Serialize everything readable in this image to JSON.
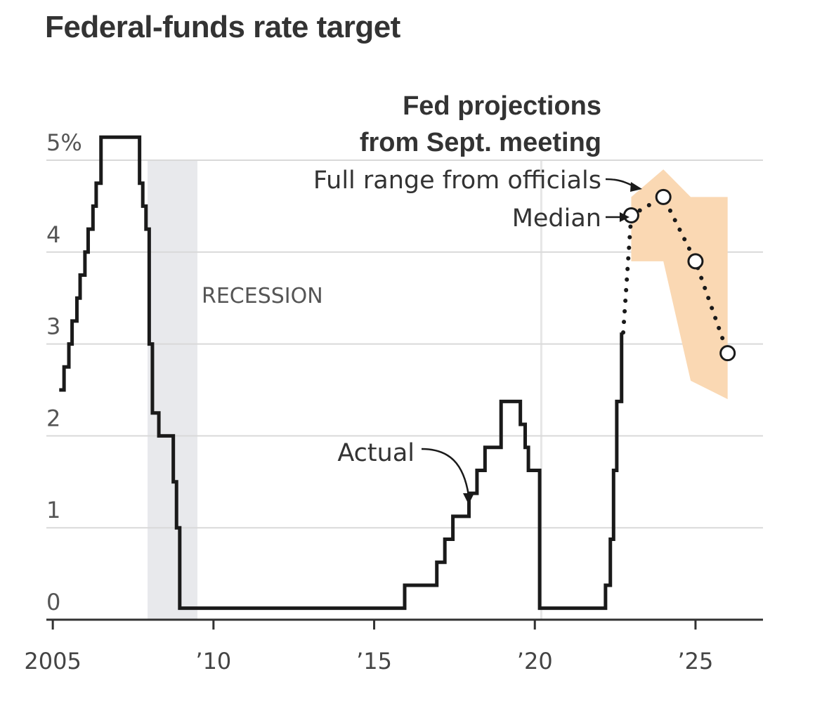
{
  "chart_data": {
    "type": "line",
    "title": "Federal-funds rate target",
    "xlabel": "",
    "ylabel": "",
    "xlim": [
      2004.8,
      2027.1
    ],
    "ylim": [
      0,
      5
    ],
    "x_ticks": [
      {
        "value": 2005,
        "label": "2005"
      },
      {
        "value": 2010,
        "label": "’10"
      },
      {
        "value": 2015,
        "label": "’15"
      },
      {
        "value": 2020,
        "label": "’20"
      },
      {
        "value": 2025,
        "label": "’25"
      }
    ],
    "y_ticks": [
      {
        "value": 0,
        "label": "0"
      },
      {
        "value": 1,
        "label": "1"
      },
      {
        "value": 2,
        "label": "2"
      },
      {
        "value": 3,
        "label": "3"
      },
      {
        "value": 4,
        "label": "4"
      },
      {
        "value": 5,
        "label": "5%"
      }
    ],
    "grid": true,
    "recession": {
      "label": "RECESSION",
      "start": 2007.95,
      "end": 2009.5
    },
    "vline_x": 2020.2,
    "annotations": {
      "actual_label": "Actual",
      "projection_title_line1": "Fed projections",
      "projection_title_line2": "from Sept. meeting",
      "range_label": "Full range from officials",
      "median_label": "Median"
    },
    "series": [
      {
        "name": "Actual",
        "step": true,
        "points": [
          [
            2005.2,
            2.5
          ],
          [
            2005.35,
            2.75
          ],
          [
            2005.5,
            3.0
          ],
          [
            2005.6,
            3.25
          ],
          [
            2005.75,
            3.5
          ],
          [
            2005.85,
            3.75
          ],
          [
            2006.0,
            4.0
          ],
          [
            2006.1,
            4.25
          ],
          [
            2006.25,
            4.5
          ],
          [
            2006.35,
            4.75
          ],
          [
            2006.5,
            5.25
          ],
          [
            2007.7,
            4.75
          ],
          [
            2007.8,
            4.5
          ],
          [
            2007.9,
            4.25
          ],
          [
            2008.0,
            3.0
          ],
          [
            2008.1,
            2.25
          ],
          [
            2008.3,
            2.0
          ],
          [
            2008.75,
            1.5
          ],
          [
            2008.85,
            1.0
          ],
          [
            2008.95,
            0.125
          ],
          [
            2015.95,
            0.375
          ],
          [
            2016.95,
            0.625
          ],
          [
            2017.2,
            0.875
          ],
          [
            2017.45,
            1.125
          ],
          [
            2017.95,
            1.375
          ],
          [
            2018.2,
            1.625
          ],
          [
            2018.45,
            1.875
          ],
          [
            2018.95,
            2.375
          ],
          [
            2019.55,
            2.125
          ],
          [
            2019.7,
            1.875
          ],
          [
            2019.8,
            1.625
          ],
          [
            2020.15,
            0.125
          ],
          [
            2022.2,
            0.375
          ],
          [
            2022.35,
            0.875
          ],
          [
            2022.45,
            1.625
          ],
          [
            2022.55,
            2.375
          ],
          [
            2022.7,
            3.125
          ]
        ]
      },
      {
        "name": "Median",
        "points": [
          [
            2022.75,
            3.125
          ],
          [
            2023,
            4.4
          ],
          [
            2024,
            4.6
          ],
          [
            2025,
            3.9
          ],
          [
            2026,
            2.9
          ]
        ]
      },
      {
        "name": "Full range from officials",
        "band": [
          {
            "x": 2023.0,
            "low": 3.9,
            "high": 4.6
          },
          {
            "x": 2024.0,
            "low": 3.9,
            "high": 4.9
          },
          {
            "x": 2024.85,
            "low": 2.6,
            "high": 4.6
          },
          {
            "x": 2026.0,
            "low": 2.4,
            "high": 4.6
          }
        ]
      }
    ],
    "colors": {
      "line": "#1a1a1a",
      "grid": "#d9d9d9",
      "band": "#fad8b3",
      "recession": "#e8e9ec",
      "axis": "#333333",
      "vline": "#e6e6e6"
    }
  }
}
